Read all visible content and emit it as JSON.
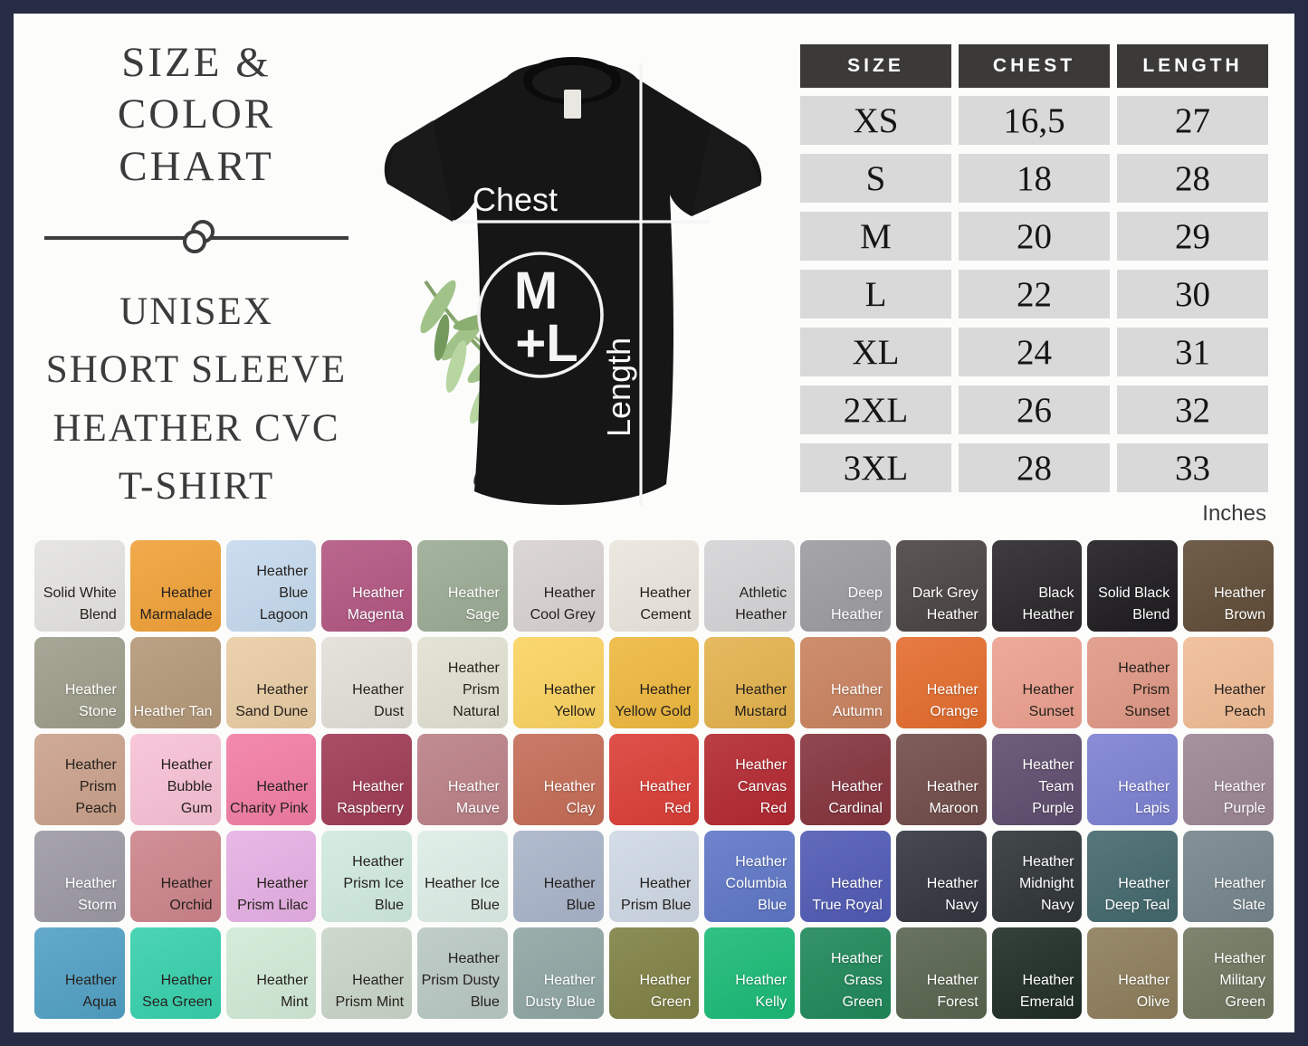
{
  "page": {
    "title_line1": "SIZE & COLOR",
    "title_line2": "CHART",
    "subtitle_lines": [
      "UNISEX",
      "SHORT SLEEVE",
      "HEATHER CVC",
      "T-SHIRT"
    ]
  },
  "frame": {
    "border_color": "#262c44",
    "background": "#fcfcfb"
  },
  "shirt": {
    "chest_label": "Chest",
    "length_label": "Length",
    "logo_line1": "M",
    "logo_line2": "+L"
  },
  "size_table": {
    "headers": [
      "SIZE",
      "CHEST",
      "LENGTH"
    ],
    "rows": [
      {
        "size": "XS",
        "chest": "16,5",
        "length": "27"
      },
      {
        "size": "S",
        "chest": "18",
        "length": "28"
      },
      {
        "size": "M",
        "chest": "20",
        "length": "29"
      },
      {
        "size": "L",
        "chest": "22",
        "length": "30"
      },
      {
        "size": "XL",
        "chest": "24",
        "length": "31"
      },
      {
        "size": "2XL",
        "chest": "26",
        "length": "32"
      },
      {
        "size": "3XL",
        "chest": "28",
        "length": "33"
      }
    ],
    "unit_note": "Inches",
    "header_bg": "#3b3a39",
    "cell_bg": "#d9d9d9"
  },
  "chart_data": {
    "type": "table",
    "title": "Size & Color Chart — Unisex Short Sleeve Heather CVC T-Shirt",
    "columns": [
      "SIZE",
      "CHEST",
      "LENGTH"
    ],
    "rows": [
      [
        "XS",
        "16,5",
        "27"
      ],
      [
        "S",
        "18",
        "28"
      ],
      [
        "M",
        "20",
        "29"
      ],
      [
        "L",
        "22",
        "30"
      ],
      [
        "XL",
        "24",
        "31"
      ],
      [
        "2XL",
        "26",
        "32"
      ],
      [
        "3XL",
        "28",
        "33"
      ]
    ],
    "unit": "Inches"
  },
  "swatches": {
    "text_dark": "#26211d",
    "text_light": "#ffffff",
    "items": [
      {
        "name": "Solid White Blend",
        "hex": "#e4e3e0",
        "text": "dark"
      },
      {
        "name": "Heather Marmalade",
        "hex": "#f0a138",
        "text": "dark"
      },
      {
        "name": "Heather Blue Lagoon",
        "hex": "#c5daee",
        "text": "dark"
      },
      {
        "name": "Heather Magenta",
        "hex": "#b25681",
        "text": "light"
      },
      {
        "name": "Heather Sage",
        "hex": "#9bab94",
        "text": "light"
      },
      {
        "name": "Heather Cool Grey",
        "hex": "#d8d2d2",
        "text": "dark"
      },
      {
        "name": "Heather Cement",
        "hex": "#eae6dd",
        "text": "dark"
      },
      {
        "name": "Athletic Heather",
        "hex": "#d4d4d6",
        "text": "dark"
      },
      {
        "name": "Deep Heather",
        "hex": "#9c9ba0",
        "text": "light"
      },
      {
        "name": "Dark Grey Heather",
        "hex": "#4a4343",
        "text": "light"
      },
      {
        "name": "Black Heather",
        "hex": "#292629",
        "text": "light"
      },
      {
        "name": "Solid Black Blend",
        "hex": "#1d1b1e",
        "text": "light"
      },
      {
        "name": "Heather Brown",
        "hex": "#604c37",
        "text": "light"
      },
      {
        "name": "Heather Stone",
        "hex": "#9d9d8b",
        "text": "light"
      },
      {
        "name": "Heather Tan",
        "hex": "#b49878",
        "text": "light"
      },
      {
        "name": "Heather Sand Dune",
        "hex": "#e9cda4",
        "text": "dark"
      },
      {
        "name": "Heather Dust",
        "hex": "#e2dfd7",
        "text": "dark"
      },
      {
        "name": "Heather Prism Natural",
        "hex": "#e1e1d2",
        "text": "dark"
      },
      {
        "name": "Heather Yellow",
        "hex": "#fbd360",
        "text": "dark"
      },
      {
        "name": "Heather Yellow Gold",
        "hex": "#eeb83e",
        "text": "dark"
      },
      {
        "name": "Heather Mustard",
        "hex": "#e3b24d",
        "text": "dark"
      },
      {
        "name": "Heather Autumn",
        "hex": "#c9825f",
        "text": "light"
      },
      {
        "name": "Heather Orange",
        "hex": "#e46c2d",
        "text": "light"
      },
      {
        "name": "Heather Sunset",
        "hex": "#eca08f",
        "text": "dark"
      },
      {
        "name": "Heather Prism Sunset",
        "hex": "#e09885",
        "text": "dark"
      },
      {
        "name": "Heather Peach",
        "hex": "#f0bc95",
        "text": "dark"
      },
      {
        "name": "Heather Prism Peach",
        "hex": "#caa18b",
        "text": "dark"
      },
      {
        "name": "Heather Bubble Gum",
        "hex": "#f7c1d5",
        "text": "dark"
      },
      {
        "name": "Heather Charity Pink",
        "hex": "#f27da4",
        "text": "dark"
      },
      {
        "name": "Heather Raspberry",
        "hex": "#9e3b54",
        "text": "light"
      },
      {
        "name": "Heather Mauve",
        "hex": "#ba8086",
        "text": "light"
      },
      {
        "name": "Heather Clay",
        "hex": "#c46c56",
        "text": "light"
      },
      {
        "name": "Heather Red",
        "hex": "#da3e36",
        "text": "light"
      },
      {
        "name": "Heather Canvas Red",
        "hex": "#b32830",
        "text": "light"
      },
      {
        "name": "Heather Cardinal",
        "hex": "#84333c",
        "text": "light"
      },
      {
        "name": "Heather Maroon",
        "hex": "#704c49",
        "text": "light"
      },
      {
        "name": "Heather Team Purple",
        "hex": "#5e4c6d",
        "text": "light"
      },
      {
        "name": "Heather Lapis",
        "hex": "#7c81d2",
        "text": "light"
      },
      {
        "name": "Heather Purple",
        "hex": "#9c8694",
        "text": "light"
      },
      {
        "name": "Heather Storm",
        "hex": "#9c99a4",
        "text": "light"
      },
      {
        "name": "Heather Orchid",
        "hex": "#cc848a",
        "text": "dark"
      },
      {
        "name": "Heather Prism Lilac",
        "hex": "#e6b0e4",
        "text": "dark"
      },
      {
        "name": "Heather Prism Ice Blue",
        "hex": "#d0eadf",
        "text": "dark"
      },
      {
        "name": "Heather Ice Blue",
        "hex": "#ddede6",
        "text": "dark"
      },
      {
        "name": "Heather Blue",
        "hex": "#a9b4c9",
        "text": "dark"
      },
      {
        "name": "Heather Prism Blue",
        "hex": "#ced8e4",
        "text": "dark"
      },
      {
        "name": "Heather Columbia Blue",
        "hex": "#5e76c6",
        "text": "light"
      },
      {
        "name": "Heather True Royal",
        "hex": "#505ab4",
        "text": "light"
      },
      {
        "name": "Heather Navy",
        "hex": "#32353f",
        "text": "light"
      },
      {
        "name": "Heather Midnight Navy",
        "hex": "#2f3437",
        "text": "light"
      },
      {
        "name": "Heather Deep Teal",
        "hex": "#43686c",
        "text": "light"
      },
      {
        "name": "Heather Slate",
        "hex": "#75858c",
        "text": "light"
      },
      {
        "name": "Heather Aqua",
        "hex": "#51a0c4",
        "text": "dark"
      },
      {
        "name": "Heather Sea Green",
        "hex": "#37d0ac",
        "text": "dark"
      },
      {
        "name": "Heather Mint",
        "hex": "#d1ead6",
        "text": "dark"
      },
      {
        "name": "Heather Prism Mint",
        "hex": "#c8d5c8",
        "text": "dark"
      },
      {
        "name": "Heather Prism Dusty Blue",
        "hex": "#b9c8c4",
        "text": "dark"
      },
      {
        "name": "Heather Dusty Blue",
        "hex": "#8fa6a3",
        "text": "light"
      },
      {
        "name": "Heather Green",
        "hex": "#7f8144",
        "text": "light"
      },
      {
        "name": "Heather Kelly",
        "hex": "#1aba76",
        "text": "light"
      },
      {
        "name": "Heather Grass Green",
        "hex": "#1e8758",
        "text": "light"
      },
      {
        "name": "Heather Forest",
        "hex": "#58644e",
        "text": "light"
      },
      {
        "name": "Heather Emerald",
        "hex": "#1e2c24",
        "text": "light"
      },
      {
        "name": "Heather Olive",
        "hex": "#8c7d5a",
        "text": "light"
      },
      {
        "name": "Heather Military Green",
        "hex": "#6f775f",
        "text": "light"
      }
    ]
  }
}
